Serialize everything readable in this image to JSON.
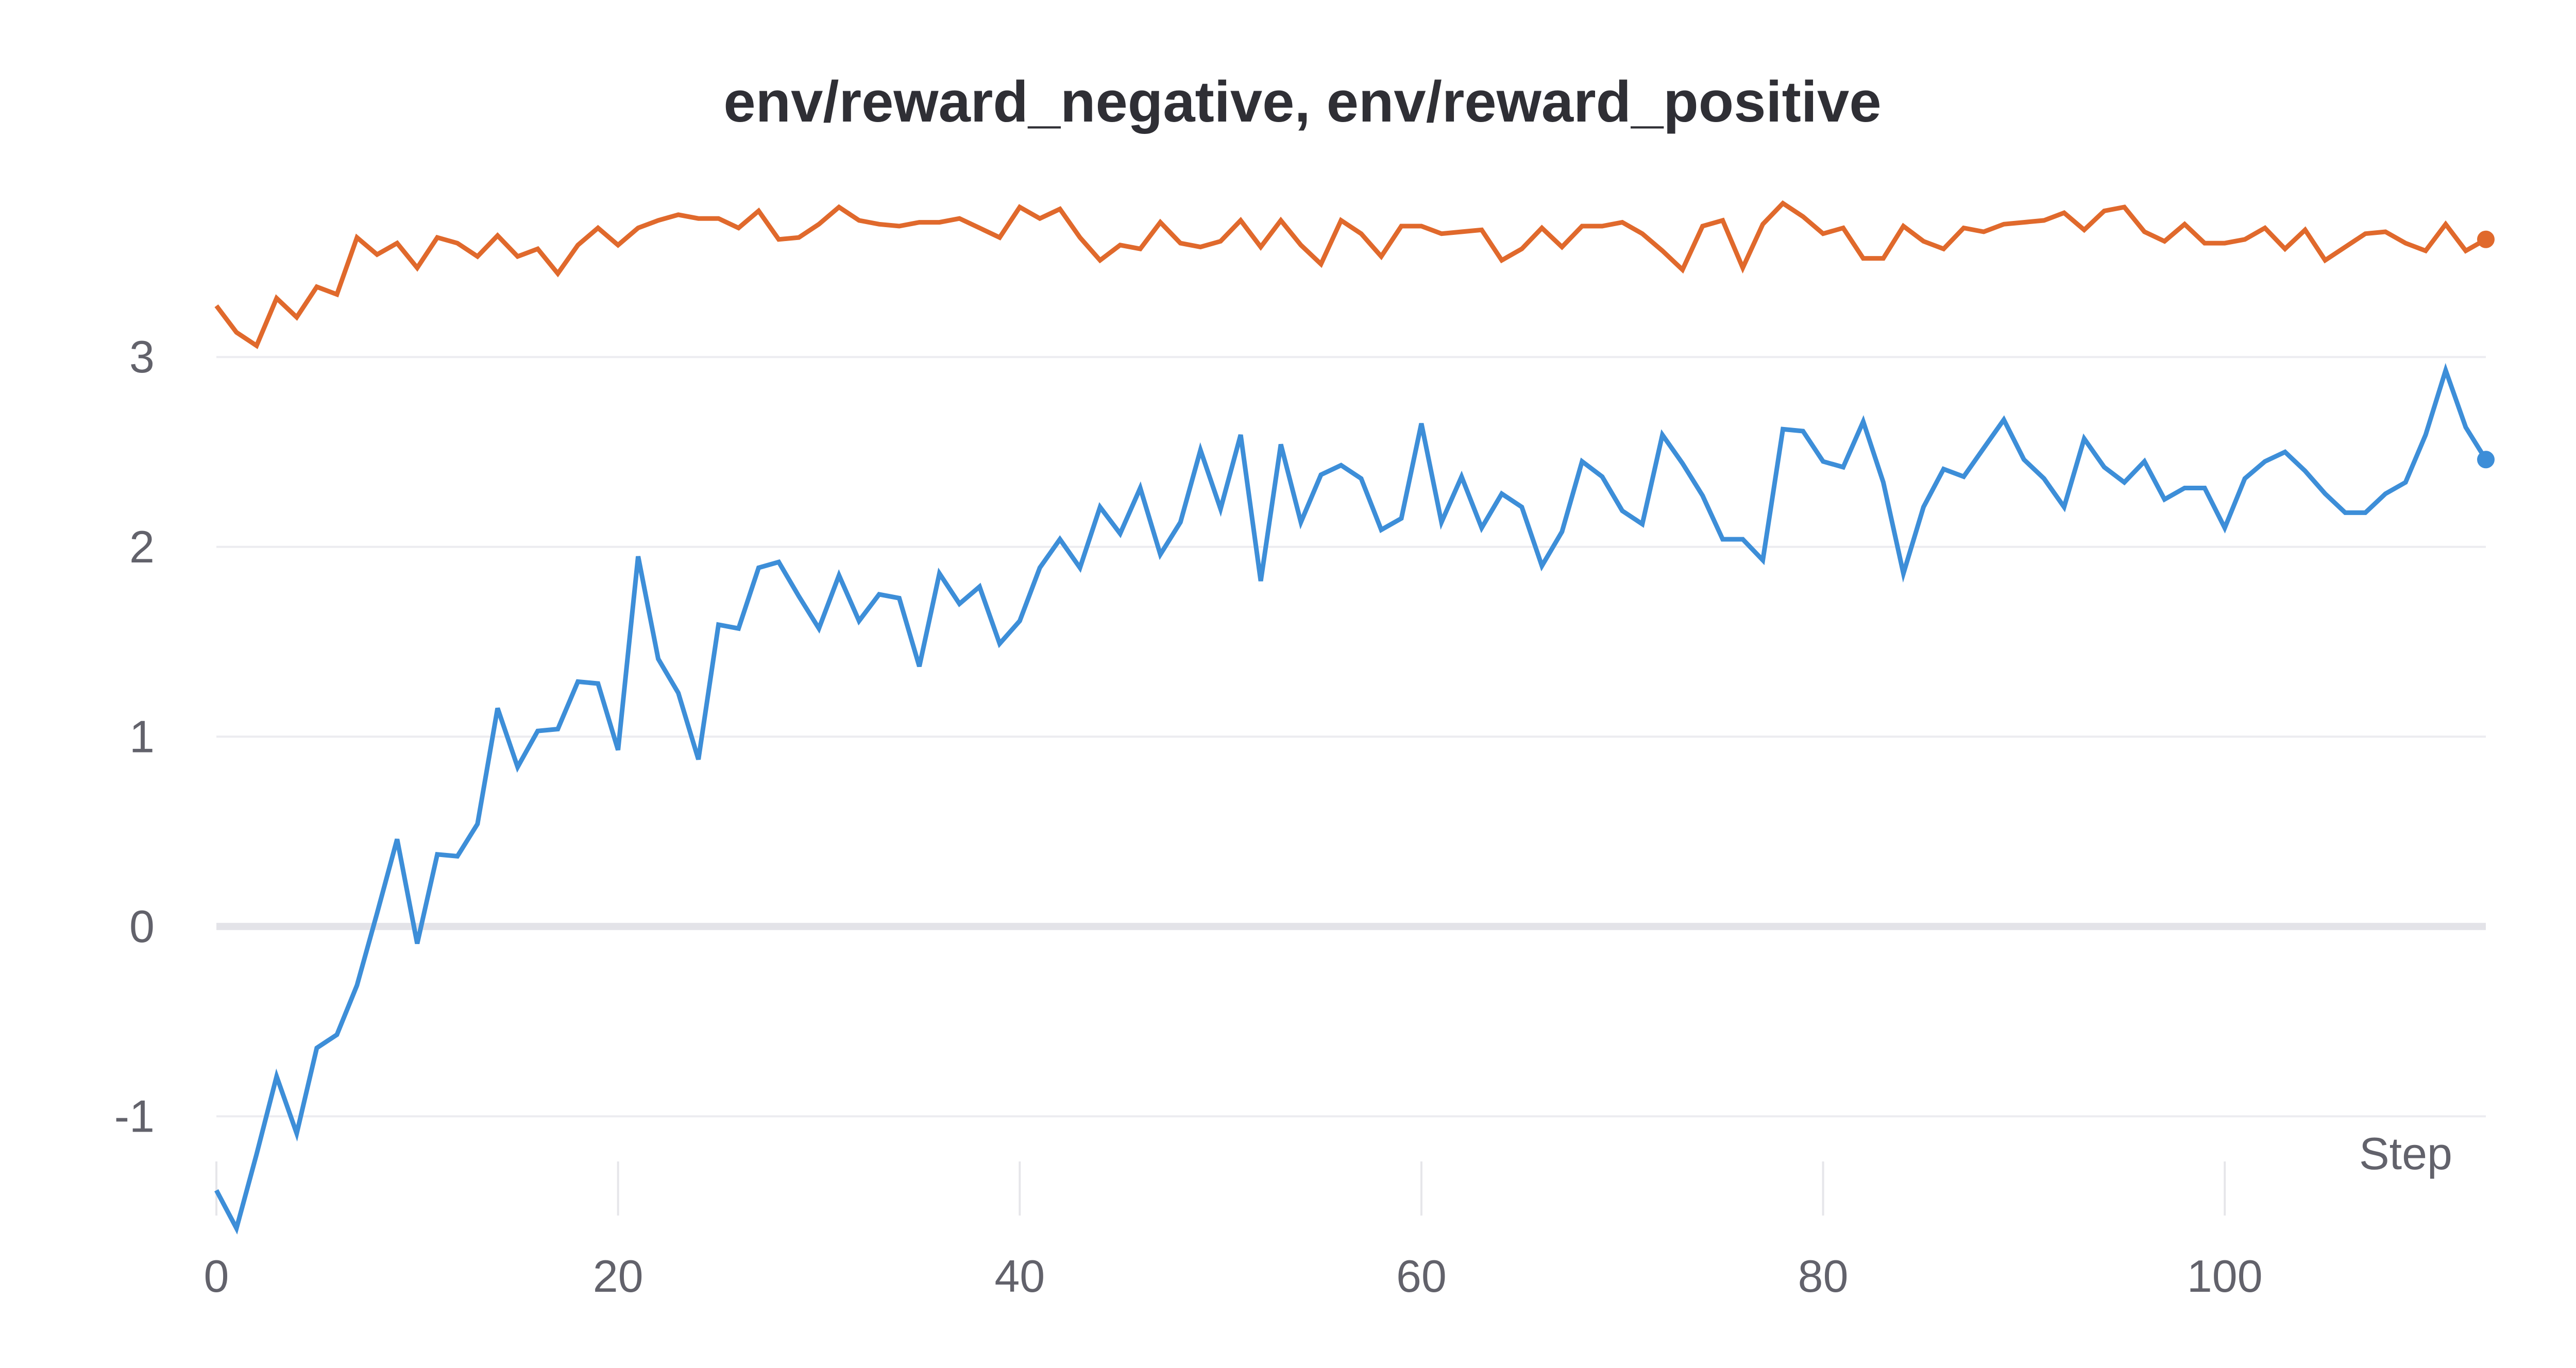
{
  "chart_data": {
    "type": "line",
    "title": "env/reward_negative, env/reward_positive",
    "xlabel": "Step",
    "ylabel": "",
    "xlim": [
      0,
      113
    ],
    "ylim": [
      -1.55,
      3.85
    ],
    "x_ticks": [
      0,
      20,
      40,
      60,
      80,
      100
    ],
    "y_ticks": [
      -1,
      0,
      1,
      2,
      3
    ],
    "grid": true,
    "legend": "none",
    "series": [
      {
        "color": "#e0692c",
        "values": [
          3.27,
          3.13,
          3.06,
          3.31,
          3.21,
          3.37,
          3.33,
          3.63,
          3.54,
          3.6,
          3.47,
          3.63,
          3.6,
          3.53,
          3.64,
          3.53,
          3.57,
          3.44,
          3.59,
          3.68,
          3.59,
          3.68,
          3.72,
          3.75,
          3.73,
          3.73,
          3.68,
          3.77,
          3.62,
          3.63,
          3.7,
          3.79,
          3.72,
          3.7,
          3.69,
          3.71,
          3.71,
          3.73,
          3.68,
          3.63,
          3.79,
          3.73,
          3.78,
          3.63,
          3.51,
          3.59,
          3.57,
          3.71,
          3.6,
          3.58,
          3.61,
          3.72,
          3.58,
          3.72,
          3.59,
          3.49,
          3.72,
          3.65,
          3.53,
          3.69,
          3.69,
          3.65,
          3.66,
          3.67,
          3.51,
          3.57,
          3.68,
          3.58,
          3.69,
          3.69,
          3.71,
          3.65,
          3.56,
          3.46,
          3.69,
          3.72,
          3.47,
          3.7,
          3.81,
          3.74,
          3.65,
          3.68,
          3.52,
          3.52,
          3.69,
          3.61,
          3.57,
          3.68,
          3.66,
          3.7,
          3.71,
          3.72,
          3.76,
          3.67,
          3.77,
          3.79,
          3.66,
          3.61,
          3.7,
          3.6,
          3.6,
          3.62,
          3.68,
          3.57,
          3.67,
          3.51,
          3.58,
          3.65,
          3.66,
          3.6,
          3.56,
          3.7,
          3.56,
          3.62
        ]
      },
      {
        "color": "#3d8ed8",
        "values": [
          -1.39,
          -1.59,
          -1.2,
          -0.79,
          -1.09,
          -0.64,
          -0.57,
          -0.31,
          0.07,
          0.46,
          -0.09,
          0.38,
          0.37,
          0.54,
          1.15,
          0.84,
          1.03,
          1.04,
          1.29,
          1.28,
          0.93,
          1.95,
          1.41,
          1.23,
          0.88,
          1.59,
          1.57,
          1.89,
          1.92,
          1.74,
          1.57,
          1.85,
          1.61,
          1.75,
          1.73,
          1.37,
          1.86,
          1.7,
          1.79,
          1.49,
          1.61,
          1.89,
          2.04,
          1.89,
          2.21,
          2.07,
          2.31,
          1.96,
          2.13,
          2.51,
          2.2,
          2.59,
          1.82,
          2.54,
          2.13,
          2.38,
          2.43,
          2.36,
          2.09,
          2.15,
          2.65,
          2.13,
          2.37,
          2.1,
          2.28,
          2.21,
          1.9,
          2.08,
          2.45,
          2.37,
          2.19,
          2.12,
          2.59,
          2.44,
          2.27,
          2.04,
          2.04,
          1.93,
          2.62,
          2.61,
          2.45,
          2.42,
          2.66,
          2.34,
          1.86,
          2.21,
          2.41,
          2.37,
          2.52,
          2.67,
          2.46,
          2.36,
          2.21,
          2.57,
          2.42,
          2.34,
          2.45,
          2.25,
          2.31,
          2.31,
          2.1,
          2.36,
          2.45,
          2.5,
          2.4,
          2.28,
          2.18,
          2.18,
          2.28,
          2.34,
          2.59,
          2.93,
          2.63,
          2.46
        ]
      }
    ]
  }
}
